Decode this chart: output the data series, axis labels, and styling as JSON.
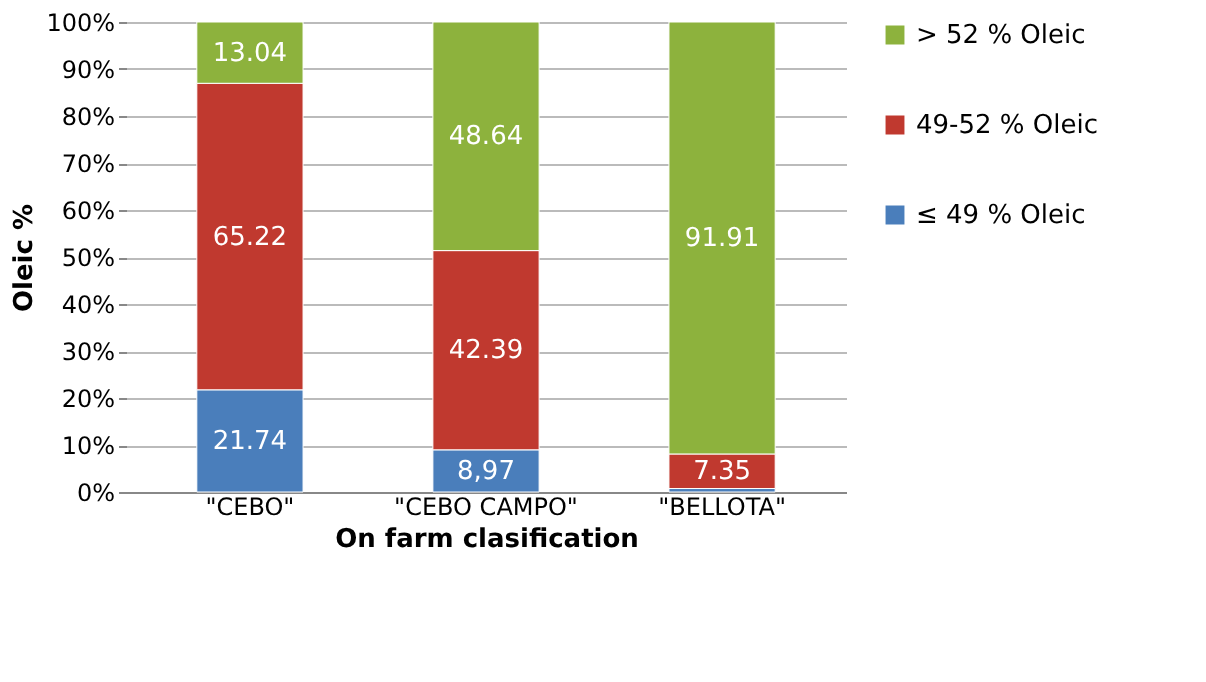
{
  "chart_data": {
    "type": "bar",
    "stacked": true,
    "xlabel": "On farm clasification",
    "ylabel": "Oleic %",
    "categories": [
      "\"CEBO\"",
      "\"CEBO CAMPO\"",
      "\"BELLOTA\""
    ],
    "series": [
      {
        "name": "≤ 49 % Oleic",
        "color": "#4a7ebb",
        "values": [
          21.74,
          8.97,
          0.74
        ],
        "value_labels": [
          "21.74",
          "8,97",
          null
        ]
      },
      {
        "name": "49-52 % Oleic",
        "color": "#c0392f",
        "values": [
          65.22,
          42.39,
          7.35
        ],
        "value_labels": [
          "65.22",
          "42.39",
          "7.35"
        ]
      },
      {
        "name": "> 52 % Oleic",
        "color": "#8db23d",
        "values": [
          13.04,
          48.64,
          91.91
        ],
        "value_labels": [
          "13.04",
          "48.64",
          "91.91"
        ]
      }
    ],
    "ylim": [
      0,
      100
    ],
    "yticks": [
      {
        "value": 0,
        "label": "0%"
      },
      {
        "value": 10,
        "label": "10%"
      },
      {
        "value": 20,
        "label": "20%"
      },
      {
        "value": 30,
        "label": "30%"
      },
      {
        "value": 40,
        "label": "40%"
      },
      {
        "value": 50,
        "label": "50%"
      },
      {
        "value": 60,
        "label": "60%"
      },
      {
        "value": 70,
        "label": "70%"
      },
      {
        "value": 80,
        "label": "80%"
      },
      {
        "value": 90,
        "label": "90%"
      },
      {
        "value": 100,
        "label": "100%"
      }
    ],
    "grid": "y",
    "legend": "right"
  }
}
